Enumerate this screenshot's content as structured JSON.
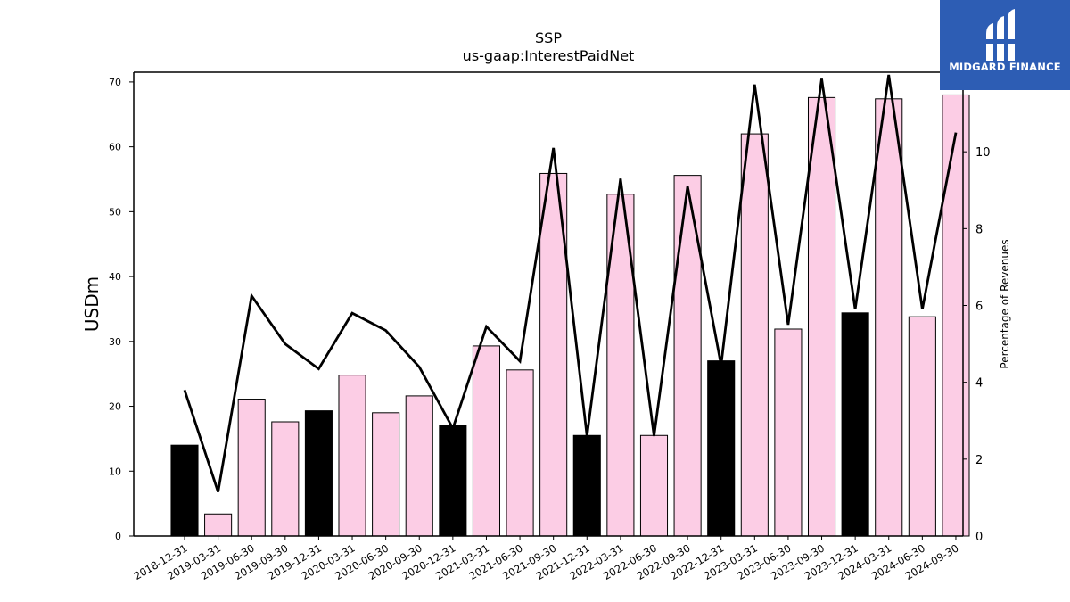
{
  "chart_data": {
    "type": "bar",
    "title": "SSP",
    "subtitle": "us-gaap:InterestPaidNet",
    "ylabel": "USDm",
    "y2label": "Percentage of Revenues",
    "ylim": [
      0,
      71.5
    ],
    "y2lim": [
      0,
      12.07
    ],
    "yticks": [
      0,
      10,
      20,
      30,
      40,
      50,
      60,
      70
    ],
    "y2ticks": [
      0,
      2,
      4,
      6,
      8,
      10,
      12
    ],
    "categories": [
      "2018-12-31",
      "2019-03-31",
      "2019-06-30",
      "2019-09-30",
      "2019-12-31",
      "2020-03-31",
      "2020-06-30",
      "2020-09-30",
      "2020-12-31",
      "2021-03-31",
      "2021-06-30",
      "2021-09-30",
      "2021-12-31",
      "2022-03-31",
      "2022-06-30",
      "2022-09-30",
      "2022-12-31",
      "2023-03-31",
      "2023-06-30",
      "2023-09-30",
      "2023-12-31",
      "2024-03-31",
      "2024-06-30",
      "2024-09-30"
    ],
    "series": [
      {
        "type": "bar",
        "values": [
          14.0,
          3.4,
          21.1,
          17.6,
          19.3,
          24.8,
          19.0,
          21.6,
          17.0,
          29.3,
          25.6,
          55.9,
          15.5,
          52.7,
          15.5,
          55.6,
          27.0,
          62.0,
          31.9,
          67.6,
          34.4,
          67.4,
          33.8,
          68.0
        ]
      },
      {
        "type": "line",
        "axis": "right",
        "values": [
          3.8,
          1.15,
          6.25,
          5.0,
          4.35,
          5.8,
          5.35,
          4.4,
          2.8,
          5.45,
          4.55,
          10.1,
          2.6,
          9.3,
          2.6,
          9.1,
          4.45,
          11.75,
          5.5,
          11.9,
          5.9,
          12.0,
          5.9,
          10.5
        ]
      }
    ],
    "bar_colors": [
      "#000000",
      "#fccde5",
      "#fccde5",
      "#fccde5",
      "#000000",
      "#fccde5",
      "#fccde5",
      "#fccde5",
      "#000000",
      "#fccde5",
      "#fccde5",
      "#fccde5",
      "#000000",
      "#fccde5",
      "#fccde5",
      "#fccde5",
      "#000000",
      "#fccde5",
      "#fccde5",
      "#fccde5",
      "#000000",
      "#fccde5",
      "#fccde5",
      "#fccde5"
    ],
    "line_color": "#000000",
    "grid": false
  },
  "logo": {
    "text": "MIDGARD FINANCE",
    "color": "#2d5db4"
  }
}
